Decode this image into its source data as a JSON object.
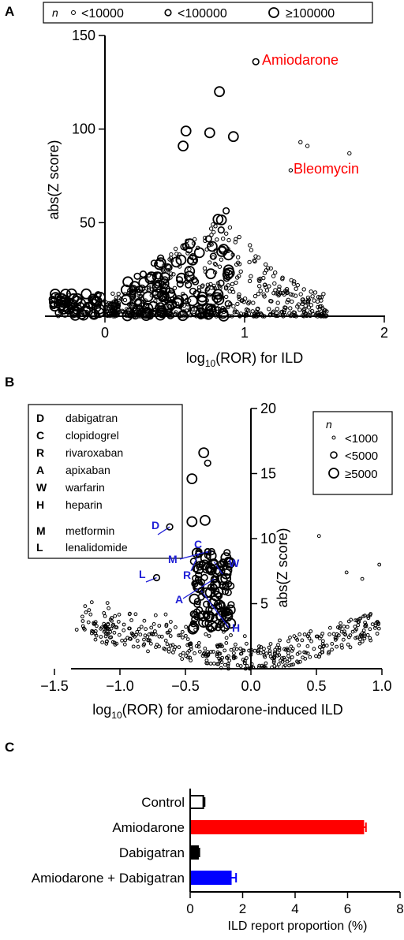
{
  "chart_data": [
    {
      "panel": "A",
      "type": "scatter",
      "xlabel": "log10(ROR) for ILD",
      "ylabel": "abs(Z score)",
      "xlim": [
        -0.4,
        2.0
      ],
      "ylim": [
        0,
        150
      ],
      "xticks": [
        "0",
        "1",
        "2"
      ],
      "yticks": [
        "50",
        "100",
        "150"
      ],
      "legend": {
        "title": "n",
        "entries": [
          "<10000",
          "<100000",
          "≥100000"
        ],
        "placement": "top"
      },
      "annotations": [
        {
          "text": "Amiodarone",
          "color": "#ff0000",
          "x": 1.08,
          "y": 136
        },
        {
          "text": "Bleomycin",
          "color": "#ff0000",
          "x": 1.35,
          "y": 78
        }
      ],
      "highlight_points": [
        {
          "x": 1.08,
          "y": 136,
          "size": "medium"
        },
        {
          "x": 0.82,
          "y": 120,
          "size": "large"
        },
        {
          "x": 0.58,
          "y": 99,
          "size": "large"
        },
        {
          "x": 0.75,
          "y": 98,
          "size": "large"
        },
        {
          "x": 0.56,
          "y": 91,
          "size": "large"
        },
        {
          "x": 0.92,
          "y": 96,
          "size": "large"
        },
        {
          "x": 1.33,
          "y": 78,
          "size": "small"
        },
        {
          "x": 1.4,
          "y": 93,
          "size": "small"
        },
        {
          "x": 1.45,
          "y": 91,
          "size": "small"
        },
        {
          "x": 1.75,
          "y": 87,
          "size": "small"
        }
      ]
    },
    {
      "panel": "B",
      "type": "scatter",
      "xlabel": "log10(ROR) for amiodarone-induced ILD",
      "ylabel": "abs(Z score)",
      "xlim": [
        -1.5,
        1.0
      ],
      "ylim": [
        0,
        20
      ],
      "xticks": [
        "−1.5",
        "−1.0",
        "−0.5",
        "0.0",
        "0.5",
        "1.0"
      ],
      "yticks": [
        "5",
        "10",
        "15",
        "20"
      ],
      "legend": {
        "title": "n",
        "entries": [
          "<1000",
          "<5000",
          "≥5000"
        ],
        "placement": "top-right"
      },
      "drug_key": [
        {
          "abbr": "D",
          "name": "dabigatran"
        },
        {
          "abbr": "C",
          "name": "clopidogrel"
        },
        {
          "abbr": "R",
          "name": "rivaroxaban"
        },
        {
          "abbr": "A",
          "name": "apixaban"
        },
        {
          "abbr": "W",
          "name": "warfarin"
        },
        {
          "abbr": "H",
          "name": "heparin"
        },
        {
          "abbr": "M",
          "name": "metformin"
        },
        {
          "abbr": "L",
          "name": "lenalidomide"
        }
      ],
      "labeled_points": [
        {
          "abbr": "D",
          "x": -0.62,
          "y": 10.9
        },
        {
          "abbr": "C",
          "x": -0.3,
          "y": 9.0
        },
        {
          "abbr": "R",
          "x": -0.4,
          "y": 8.8
        },
        {
          "abbr": "A",
          "x": -0.28,
          "y": 6.9
        },
        {
          "abbr": "W",
          "x": -0.28,
          "y": 8.2
        },
        {
          "abbr": "H",
          "x": -0.38,
          "y": 6.0
        },
        {
          "abbr": "M",
          "x": -0.33,
          "y": 9.0
        },
        {
          "abbr": "L",
          "x": -0.72,
          "y": 7.0
        }
      ],
      "highlight_points": [
        {
          "x": -0.36,
          "y": 16.6,
          "size": "large"
        },
        {
          "x": -0.33,
          "y": 15.8,
          "size": "medium"
        },
        {
          "x": -0.45,
          "y": 14.6,
          "size": "large"
        },
        {
          "x": -0.35,
          "y": 11.4,
          "size": "large"
        },
        {
          "x": -0.45,
          "y": 11.3,
          "size": "large"
        },
        {
          "x": 0.52,
          "y": 10.2,
          "size": "small"
        },
        {
          "x": 0.98,
          "y": 8.0,
          "size": "small"
        },
        {
          "x": 0.73,
          "y": 7.4,
          "size": "small"
        },
        {
          "x": 0.85,
          "y": 6.9,
          "size": "small"
        },
        {
          "x": -1.33,
          "y": 3.0,
          "size": "small"
        }
      ]
    },
    {
      "panel": "C",
      "type": "bar",
      "orientation": "horizontal",
      "categories": [
        "Control",
        "Amiodarone",
        "Dabigatran",
        "Amiodarone + Dabigatran"
      ],
      "values": [
        0.5,
        6.6,
        0.3,
        1.55
      ],
      "errors": [
        0.05,
        0.1,
        0.05,
        0.2
      ],
      "colors": [
        "#ffffff",
        "#ff0000",
        "#000000",
        "#0000ff"
      ],
      "xlabel": "ILD report proportion (%)",
      "xlim": [
        0,
        8
      ],
      "xticks": [
        "0",
        "2",
        "4",
        "6",
        "8"
      ]
    }
  ]
}
